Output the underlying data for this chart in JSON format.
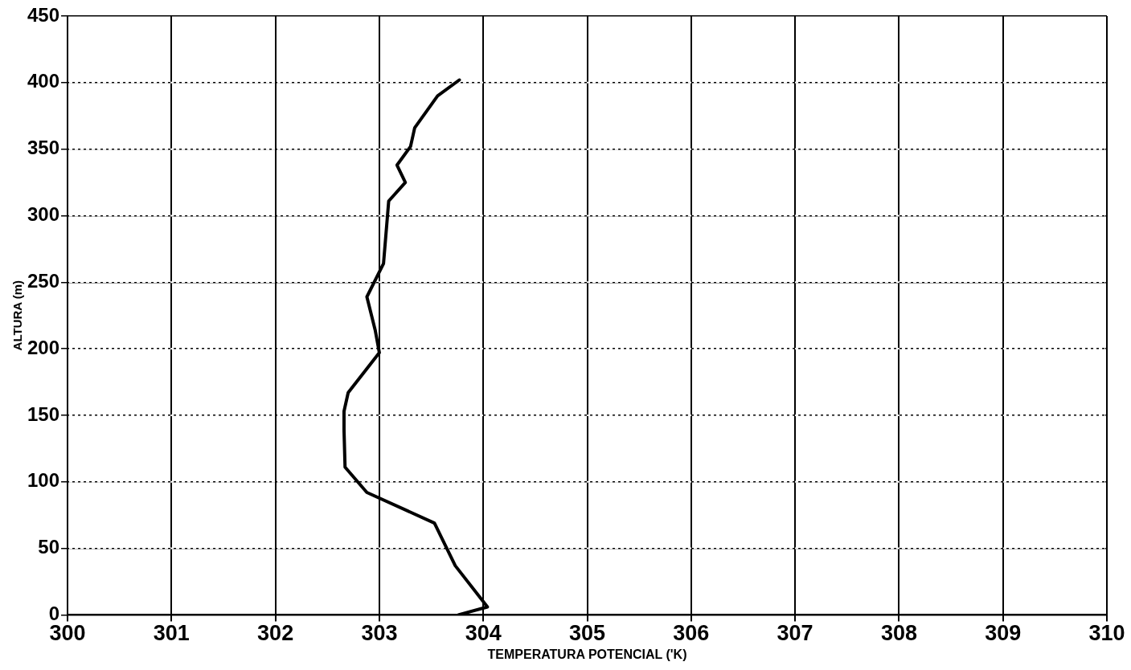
{
  "chart_data": {
    "type": "line",
    "xlabel": "TEMPERATURA POTENCIAL ('K)",
    "ylabel": "ALTURA (m)",
    "x": [
      303.76,
      304.04,
      303.73,
      303.53,
      302.88,
      302.67,
      302.66,
      302.66,
      302.7,
      303.0,
      302.96,
      302.88,
      303.04,
      303.09,
      303.25,
      303.17,
      303.3,
      303.34,
      303.56,
      303.77
    ],
    "series": [
      {
        "color": "#000000",
        "values": [
          0,
          6,
          37,
          69,
          92,
          111,
          139,
          153,
          167,
          197,
          214,
          239,
          264,
          311,
          325,
          338,
          352,
          366,
          390,
          402
        ]
      }
    ],
    "xlim": [
      300,
      310
    ],
    "xticks": [
      300,
      301,
      302,
      303,
      304,
      305,
      306,
      307,
      308,
      309,
      310
    ],
    "ylim": [
      0,
      450
    ],
    "yticks": [
      0,
      50,
      100,
      150,
      200,
      250,
      300,
      350,
      400,
      450
    ],
    "grid": true,
    "marker": "none",
    "line_style": "solid"
  }
}
